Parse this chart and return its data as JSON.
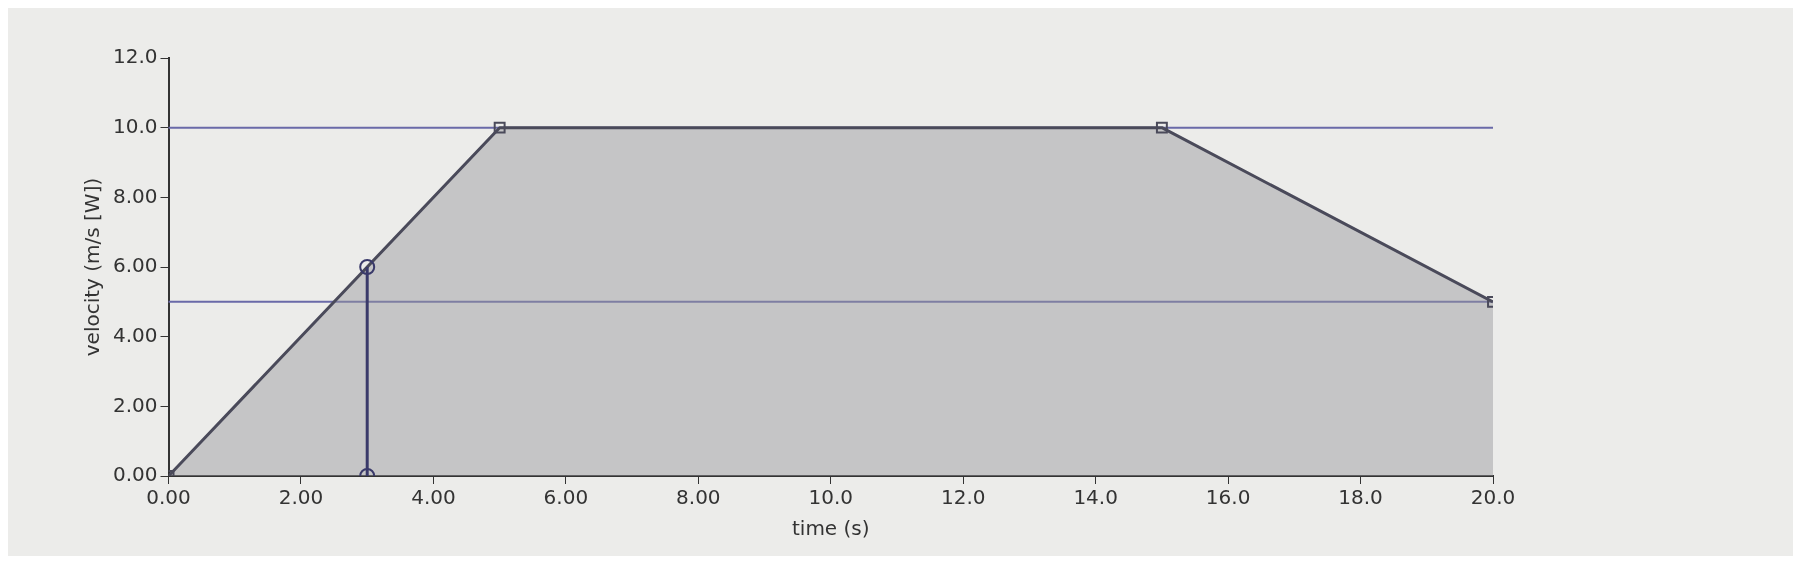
{
  "chart_data": {
    "type": "area",
    "xlabel": "time (s)",
    "ylabel": "velocity (m/s [W])",
    "xlim": [
      0,
      20
    ],
    "ylim": [
      0,
      12
    ],
    "xticks": [
      {
        "value": 0,
        "label": "0.00"
      },
      {
        "value": 2,
        "label": "2.00"
      },
      {
        "value": 4,
        "label": "4.00"
      },
      {
        "value": 6,
        "label": "6.00"
      },
      {
        "value": 8,
        "label": "8.00"
      },
      {
        "value": 10,
        "label": "10.0"
      },
      {
        "value": 12,
        "label": "12.0"
      },
      {
        "value": 14,
        "label": "14.0"
      },
      {
        "value": 16,
        "label": "16.0"
      },
      {
        "value": 18,
        "label": "18.0"
      },
      {
        "value": 20,
        "label": "20.0"
      }
    ],
    "yticks": [
      {
        "value": 0,
        "label": "0.00"
      },
      {
        "value": 2,
        "label": "2.00"
      },
      {
        "value": 4,
        "label": "4.00"
      },
      {
        "value": 6,
        "label": "6.00"
      },
      {
        "value": 8,
        "label": "8.00"
      },
      {
        "value": 10,
        "label": "10.0"
      },
      {
        "value": 12,
        "label": "12.0"
      }
    ],
    "series": [
      {
        "type": "area",
        "color": "#4a4a5a",
        "x": [
          0,
          5,
          15,
          20
        ],
        "values": [
          0,
          10,
          10,
          5
        ],
        "marker": "square"
      },
      {
        "type": "line",
        "color": "#3a3a6a",
        "x": [
          3,
          3
        ],
        "values": [
          0,
          6
        ],
        "marker": "circle"
      }
    ],
    "ref_lines": [
      {
        "axis": "y",
        "value": 10,
        "color": "#6a6aa8"
      },
      {
        "axis": "y",
        "value": 5,
        "color": "#6a6aa8"
      }
    ],
    "grid": false,
    "legend": false
  }
}
